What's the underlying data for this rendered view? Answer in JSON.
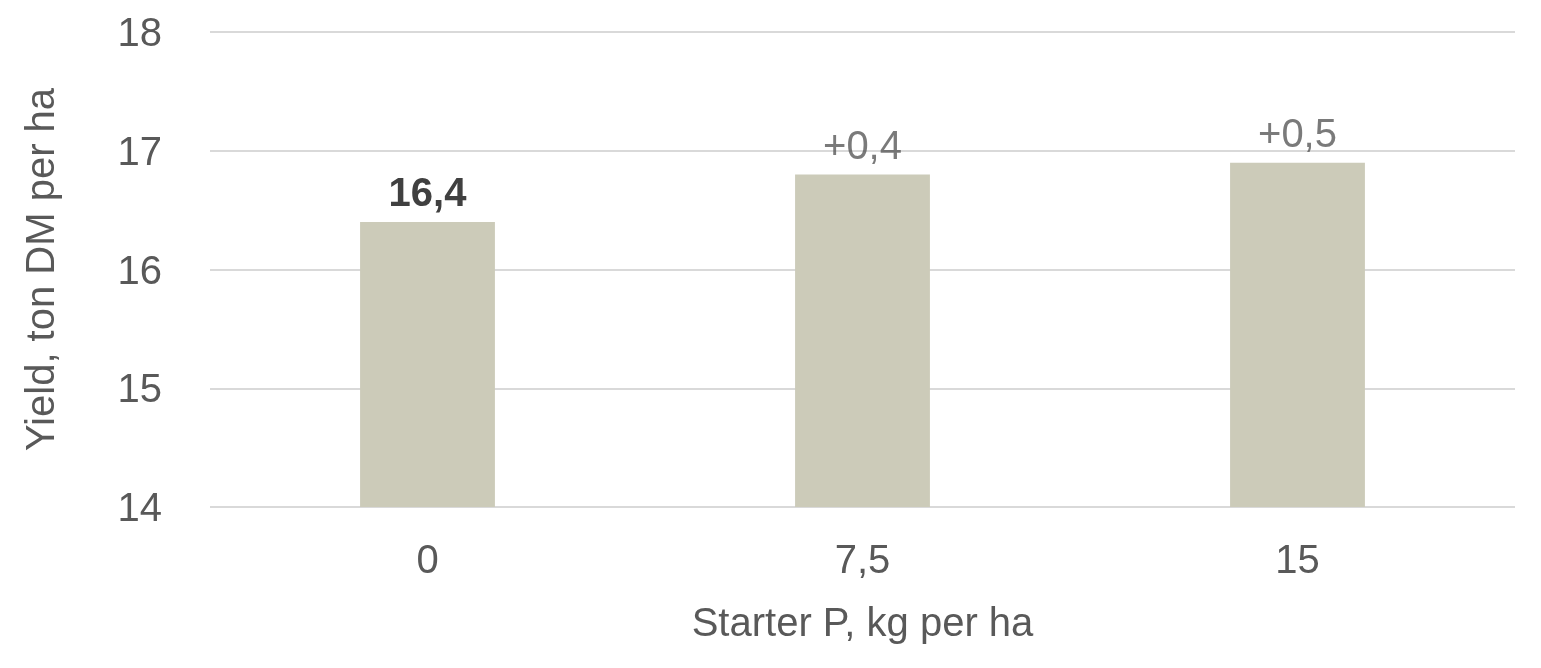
{
  "chart_data": {
    "type": "bar",
    "xlabel": "Starter P, kg per ha",
    "ylabel": "Yield, ton DM per ha",
    "categories": [
      "0",
      "7,5",
      "15"
    ],
    "values": [
      16.4,
      16.8,
      16.9
    ],
    "value_labels": [
      "16,4",
      null,
      null
    ],
    "annotations": [
      {
        "text": "+0,4",
        "x": "7,5",
        "y": 16.8
      },
      {
        "text": "+0,5",
        "x": "15",
        "y": 16.9
      }
    ],
    "color": "#cccbb9",
    "ylim": [
      14,
      18
    ],
    "yticks": [
      14,
      15,
      16,
      17,
      18
    ],
    "grid": "y"
  }
}
